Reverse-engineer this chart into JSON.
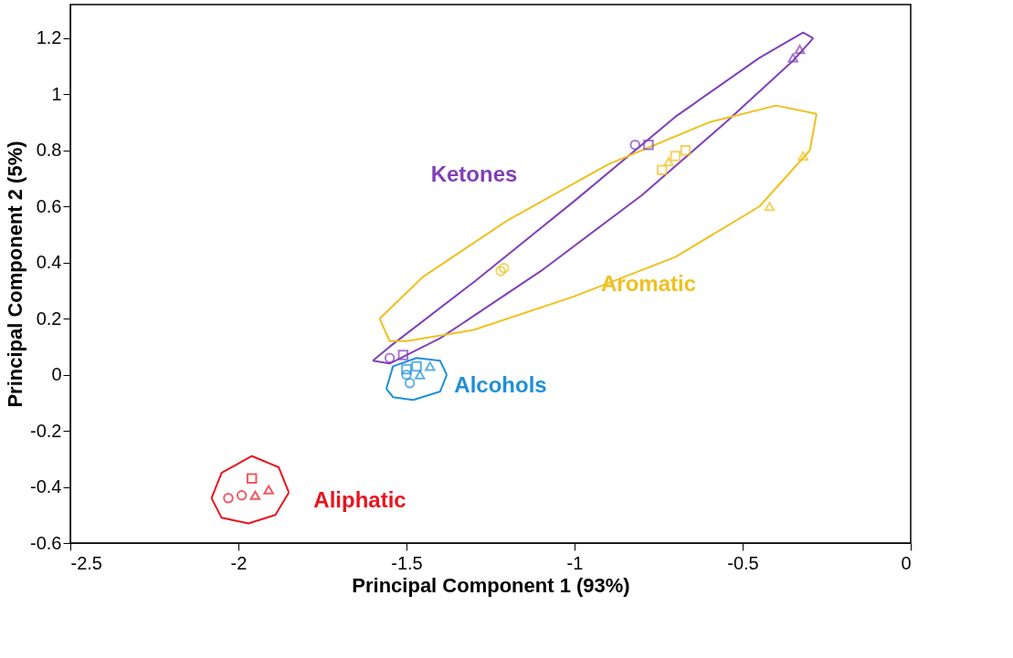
{
  "chart_data": {
    "type": "scatter",
    "xlabel": "Principal Component 1 (93%)",
    "ylabel": "Principal Component 2 (5%)",
    "xlim": [
      -2.5,
      0
    ],
    "ylim": [
      -0.6,
      1.32
    ],
    "xticks": [
      -2.5,
      -2,
      -1.5,
      -1,
      -0.5,
      0
    ],
    "yticks": [
      -0.6,
      -0.4,
      -0.2,
      0,
      0.2,
      0.4,
      0.6,
      0.8,
      1,
      1.2
    ],
    "grid": false,
    "series": [
      {
        "type": "line",
        "color": "#8040b8",
        "x": [
          -1.6,
          -1.55,
          -1.3,
          -1.0,
          -0.7,
          -0.45,
          -0.32,
          -0.29
        ],
        "values": [
          0.05,
          0.1,
          0.33,
          0.62,
          0.92,
          1.13,
          1.22,
          1.2
        ]
      },
      {
        "type": "line",
        "color": "#8040b8",
        "x": [
          -1.6,
          -1.55,
          -1.4,
          -1.1,
          -0.8,
          -0.55,
          -0.35,
          -0.29
        ],
        "values": [
          0.05,
          0.04,
          0.13,
          0.37,
          0.64,
          0.9,
          1.12,
          1.2
        ]
      },
      {
        "type": "line",
        "color": "#f0c020",
        "x": [
          -1.58,
          -1.45,
          -1.2,
          -0.9,
          -0.6,
          -0.4,
          -0.28
        ],
        "values": [
          0.2,
          0.35,
          0.55,
          0.75,
          0.9,
          0.96,
          0.93
        ]
      },
      {
        "type": "line",
        "color": "#f0c020",
        "x": [
          -1.58,
          -1.55,
          -1.5,
          -1.3,
          -1.0,
          -0.7,
          -0.45,
          -0.3,
          -0.28
        ],
        "values": [
          0.2,
          0.12,
          0.12,
          0.16,
          0.28,
          0.42,
          0.6,
          0.8,
          0.93
        ]
      },
      {
        "type": "line",
        "color": "#1e90d8",
        "x": [
          -1.56,
          -1.54,
          -1.47,
          -1.4,
          -1.38
        ],
        "values": [
          -0.05,
          0.03,
          0.06,
          0.05,
          0.0
        ]
      },
      {
        "type": "line",
        "color": "#1e90d8",
        "x": [
          -1.56,
          -1.54,
          -1.48,
          -1.4,
          -1.38
        ],
        "values": [
          -0.05,
          -0.08,
          -0.09,
          -0.06,
          0.0
        ]
      },
      {
        "type": "line",
        "color": "#e8141e",
        "x": [
          -2.08,
          -2.05,
          -1.96,
          -1.88,
          -1.85
        ],
        "values": [
          -0.44,
          -0.35,
          -0.29,
          -0.33,
          -0.42
        ]
      },
      {
        "type": "line",
        "color": "#e8141e",
        "x": [
          -2.08,
          -2.05,
          -1.97,
          -1.89,
          -1.85
        ],
        "values": [
          -0.44,
          -0.51,
          -0.53,
          -0.5,
          -0.42
        ]
      },
      {
        "marker": "circle",
        "color": "#8040b8",
        "x": [
          -1.55,
          -0.82
        ],
        "values": [
          0.06,
          0.82
        ]
      },
      {
        "type": "scatter",
        "marker": "square",
        "color": "#8040b8",
        "x": [
          -1.51,
          -0.78
        ],
        "values": [
          0.07,
          0.82
        ]
      },
      {
        "type": "scatter",
        "marker": "triangle",
        "color": "#8040b8",
        "x": [
          -0.35,
          -0.33
        ],
        "values": [
          1.13,
          1.16
        ]
      },
      {
        "type": "scatter",
        "marker": "circle",
        "color": "#f0c020",
        "x": [
          -1.22,
          -1.21
        ],
        "values": [
          0.37,
          0.38
        ]
      },
      {
        "type": "scatter",
        "marker": "square",
        "color": "#f0c020",
        "x": [
          -0.74,
          -0.7,
          -0.67
        ],
        "values": [
          0.73,
          0.78,
          0.8
        ]
      },
      {
        "type": "scatter",
        "marker": "triangle",
        "color": "#f0c020",
        "x": [
          -0.42,
          -0.32,
          -0.72
        ],
        "values": [
          0.6,
          0.78,
          0.76
        ]
      },
      {
        "type": "scatter",
        "marker": "circle",
        "color": "#1e90d8",
        "x": [
          -1.49,
          -1.5
        ],
        "values": [
          -0.03,
          0.0
        ]
      },
      {
        "type": "scatter",
        "marker": "square",
        "color": "#1e90d8",
        "x": [
          -1.47,
          -1.5
        ],
        "values": [
          0.03,
          0.02
        ]
      },
      {
        "type": "scatter",
        "marker": "triangle",
        "color": "#1e90d8",
        "x": [
          -1.43,
          -1.46
        ],
        "values": [
          0.03,
          0.0
        ]
      },
      {
        "type": "scatter",
        "marker": "circle",
        "color": "#e8141e",
        "x": [
          -2.03,
          -1.99
        ],
        "values": [
          -0.44,
          -0.43
        ]
      },
      {
        "type": "scatter",
        "marker": "square",
        "color": "#e8141e",
        "x": [
          -1.96
        ],
        "values": [
          -0.37
        ]
      },
      {
        "type": "scatter",
        "marker": "triangle",
        "color": "#e8141e",
        "x": [
          -1.91,
          -1.95
        ],
        "values": [
          -0.41,
          -0.43
        ]
      }
    ],
    "annotations": [
      "Ketones",
      "Aromatic",
      "Alcohols",
      "Aliphatic"
    ]
  }
}
